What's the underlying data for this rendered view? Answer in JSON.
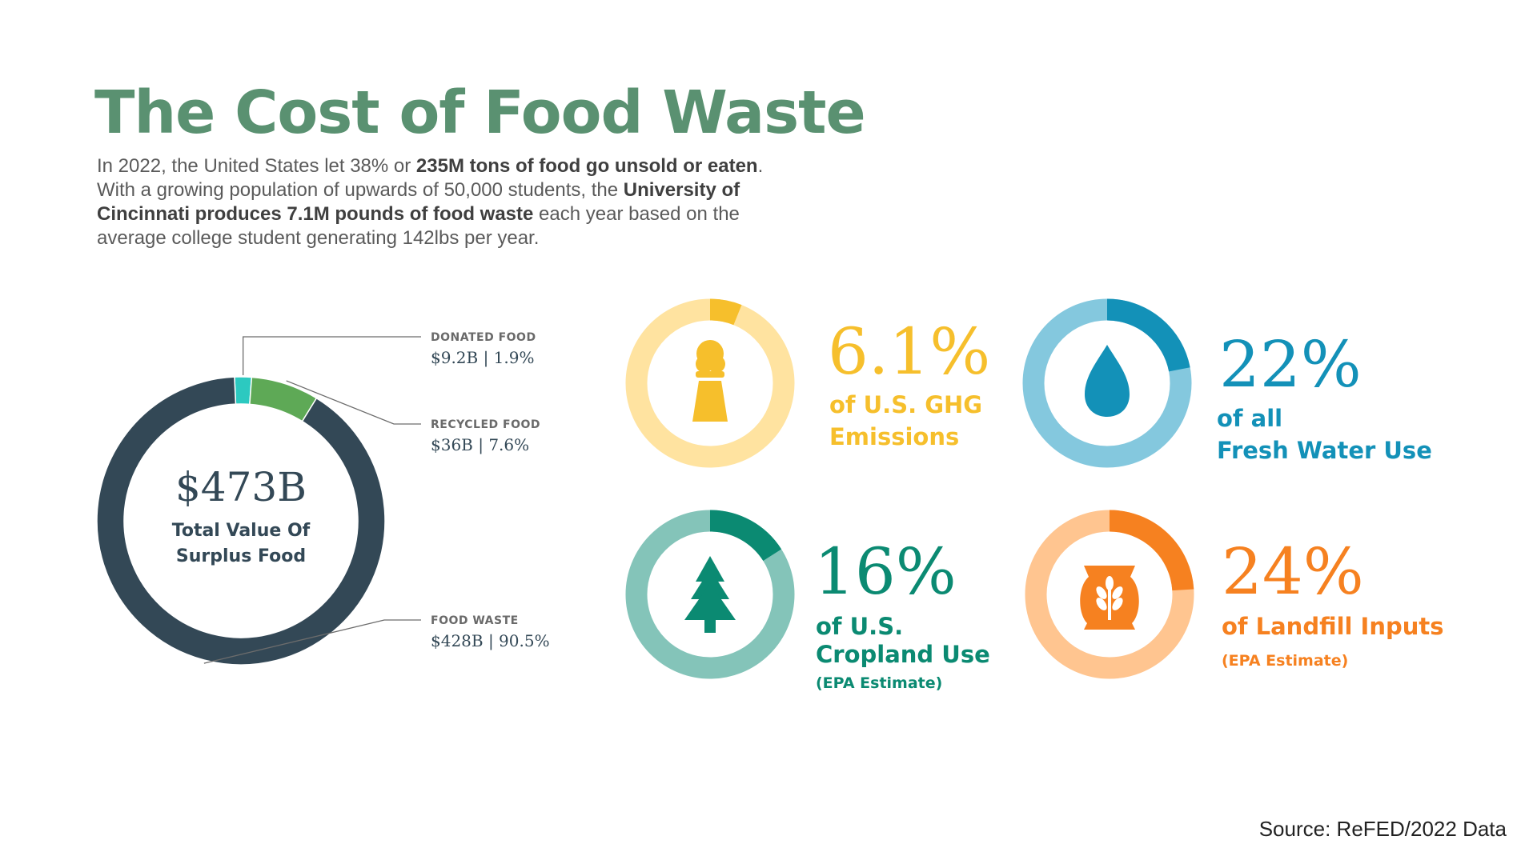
{
  "header": {
    "title": "The Cost of Food Waste",
    "intro_parts": [
      {
        "text": "In 2022, the United States let 38% or ",
        "bold": false
      },
      {
        "text": "235M tons of food go unsold or eaten",
        "bold": true
      },
      {
        "text": ". With a growing population of upwards of 50,000 students, the ",
        "bold": false
      },
      {
        "text": "University of Cincinnati produces 7.1M pounds of food waste",
        "bold": true
      },
      {
        "text": " each year based on the average college student generating 142lbs per year.",
        "bold": false
      }
    ]
  },
  "chart_data": [
    {
      "type": "pie",
      "center_value": "$473B",
      "center_label_lines": [
        "Total Value Of",
        "Surplus Food"
      ],
      "slices": [
        {
          "name": "DONATED FOOD",
          "detail": "$9.2B | 1.9%",
          "value": 1.9,
          "color": "#2cc9c0"
        },
        {
          "name": "RECYCLED FOOD",
          "detail": "$36B | 7.6%",
          "value": 7.6,
          "color": "#5ea956"
        },
        {
          "name": "FOOD WASTE",
          "detail": "$428B | 90.5%",
          "value": 90.5,
          "color": "#334856"
        }
      ]
    },
    {
      "type": "pie",
      "value": 6.1,
      "value_label": "6.1%",
      "desc_lines": [
        "of U.S. GHG",
        "Emissions"
      ],
      "note": "",
      "icon": "smokestack-icon",
      "colors": {
        "fill": "#f6bf2c",
        "track": "#ffe3a0"
      }
    },
    {
      "type": "pie",
      "value": 22,
      "value_label": "22%",
      "desc_lines": [
        "of all",
        "Fresh Water Use"
      ],
      "note": "",
      "icon": "water-drop-icon",
      "colors": {
        "fill": "#1391b8",
        "track": "#84c8de"
      }
    },
    {
      "type": "pie",
      "value": 16,
      "value_label": "16%",
      "desc_lines": [
        "of U.S.",
        "Cropland Use"
      ],
      "note": "(EPA Estimate)",
      "icon": "tree-icon",
      "colors": {
        "fill": "#0b8a72",
        "track": "#84c4b9"
      }
    },
    {
      "type": "pie",
      "value": 24,
      "value_label": "24%",
      "desc_lines": [
        "of Landfill Inputs"
      ],
      "note": "(EPA Estimate)",
      "icon": "grain-sack-icon",
      "colors": {
        "fill": "#f68120",
        "track": "#ffc590"
      }
    }
  ],
  "footer": {
    "source": "Source: ReFED/2022 Data"
  }
}
